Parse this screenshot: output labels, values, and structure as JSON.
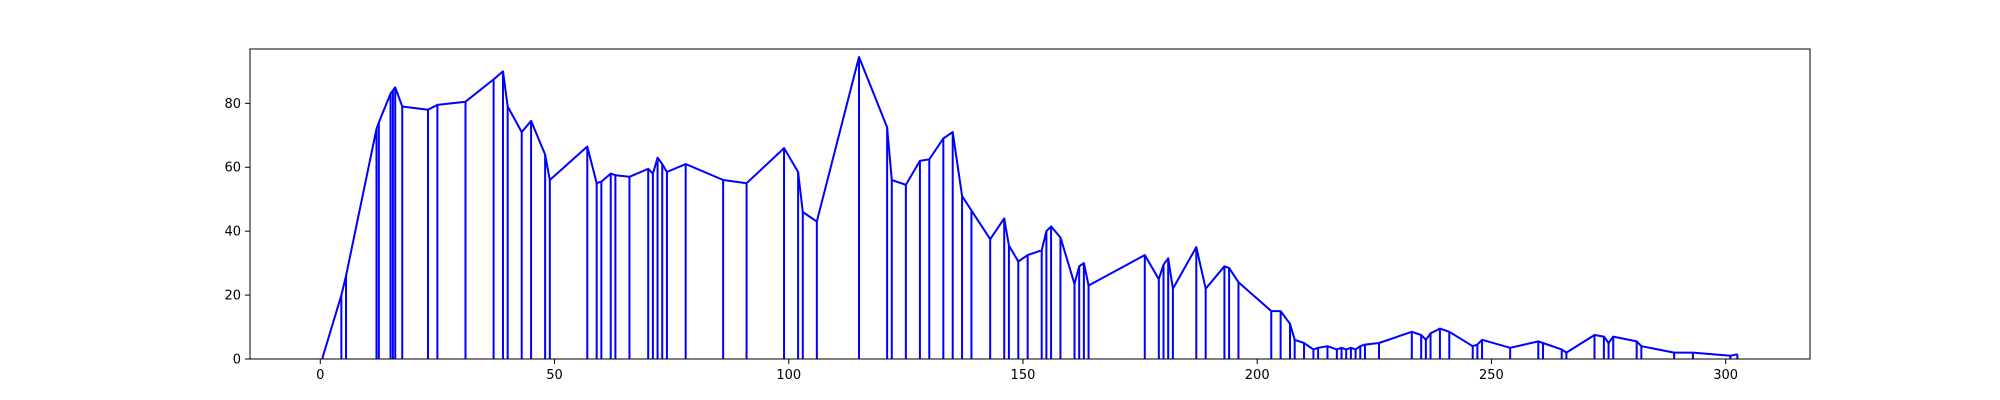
{
  "chart_data": {
    "type": "line",
    "title": "",
    "xlabel": "",
    "ylabel": "",
    "xlim": [
      -15,
      318
    ],
    "ylim": [
      0,
      97
    ],
    "grid": false,
    "legend": "none",
    "series_color": "#0000ff",
    "draw_style": "vertical stems from x-axis to each point, joined by a polyline",
    "x_ticks": [
      0,
      50,
      100,
      150,
      200,
      250,
      300
    ],
    "y_ticks": [
      0,
      20,
      40,
      60,
      80
    ],
    "x": [
      0.5,
      4.5,
      5.5,
      12,
      12.5,
      15,
      15.5,
      16,
      17.5,
      23,
      25,
      31,
      37,
      39,
      40,
      43,
      45,
      48,
      49,
      57,
      59,
      60,
      62,
      63,
      66,
      70,
      71,
      72,
      73,
      74,
      78,
      86,
      91,
      99,
      102,
      103,
      106,
      115,
      121,
      122,
      125,
      128,
      130,
      133,
      135,
      137,
      139,
      143,
      146,
      147,
      149,
      151,
      154,
      155,
      156,
      158,
      161,
      162,
      163,
      164,
      176,
      179,
      180,
      181,
      182,
      187,
      189,
      193,
      194,
      196,
      203,
      205,
      207,
      208,
      210,
      212,
      213,
      215,
      217,
      218,
      219,
      220,
      221,
      222,
      223,
      226,
      233,
      235,
      236,
      237,
      239,
      241,
      246,
      247,
      248,
      254,
      260,
      261,
      265,
      266,
      272,
      274,
      275,
      276,
      281,
      282,
      289,
      293,
      301,
      302.5
    ],
    "y": [
      0.5,
      20,
      26,
      72,
      74,
      83,
      84,
      85,
      79,
      78,
      79.5,
      80.5,
      87.5,
      90,
      79,
      71,
      74.5,
      64,
      56,
      66.5,
      55,
      55.5,
      58,
      57.5,
      57,
      59.5,
      58,
      63,
      61,
      58.5,
      61,
      56,
      55,
      66,
      58.5,
      46,
      43,
      94.5,
      72.5,
      56,
      54.5,
      62,
      62.5,
      69,
      71,
      51,
      46.5,
      37.5,
      44,
      35.5,
      30.5,
      32.5,
      34,
      40,
      41.5,
      38,
      23.5,
      29,
      30,
      23,
      32.5,
      25,
      29.5,
      31.5,
      22,
      35,
      22,
      29,
      28.5,
      24,
      15,
      15,
      11,
      6,
      5,
      3,
      3.5,
      4,
      3,
      3.5,
      3,
      3.5,
      3,
      4,
      4.5,
      5,
      8.5,
      7.5,
      6,
      8,
      9.5,
      8.5,
      4,
      4.5,
      6,
      3.5,
      5.5,
      5,
      3,
      2,
      7.5,
      7,
      5,
      7,
      5.5,
      4,
      2,
      2,
      1,
      1.5
    ]
  }
}
